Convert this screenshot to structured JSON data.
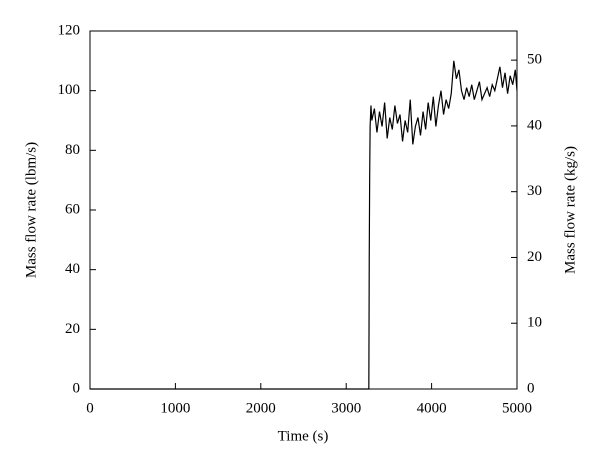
{
  "chart_data": {
    "type": "line",
    "xlabel": "Time (s)",
    "ylabel": "Mass flow rate (lbm/s)",
    "y2label": "Mass flow rate (kg/s)",
    "x": [
      0,
      3265,
      3270,
      3275,
      3280,
      3290,
      3300,
      3330,
      3360,
      3390,
      3420,
      3450,
      3480,
      3510,
      3540,
      3570,
      3600,
      3630,
      3660,
      3690,
      3720,
      3750,
      3780,
      3810,
      3840,
      3870,
      3900,
      3930,
      3960,
      3990,
      4020,
      4050,
      4080,
      4110,
      4140,
      4170,
      4200,
      4230,
      4260,
      4290,
      4320,
      4350,
      4380,
      4410,
      4440,
      4470,
      4500,
      4530,
      4560,
      4590,
      4620,
      4650,
      4680,
      4710,
      4740,
      4770,
      4800,
      4830,
      4860,
      4890,
      4920,
      4950,
      4980,
      5000
    ],
    "series": [
      {
        "color": "#000000",
        "values": [
          0,
          0,
          45,
          72,
          88,
          95,
          90,
          94,
          86,
          93,
          88,
          96,
          84,
          91,
          87,
          95,
          89,
          92,
          83,
          90,
          86,
          97,
          82,
          88,
          91,
          85,
          93,
          87,
          96,
          90,
          98,
          88,
          95,
          100,
          92,
          97,
          94,
          99,
          110,
          104,
          107,
          100,
          97,
          101,
          98,
          102,
          97,
          100,
          103,
          97,
          99,
          101,
          98,
          102,
          100,
          104,
          108,
          101,
          106,
          99,
          105,
          102,
          107,
          100
        ]
      }
    ],
    "xlim": [
      0,
      5000
    ],
    "xticks": [
      0,
      1000,
      2000,
      3000,
      4000,
      5000
    ],
    "ylim": [
      0,
      120
    ],
    "yticks": [
      0,
      20,
      40,
      60,
      80,
      100,
      120
    ],
    "y2lim": [
      0,
      54.43
    ],
    "y2ticks": [
      0,
      10,
      20,
      30,
      40,
      50
    ]
  }
}
